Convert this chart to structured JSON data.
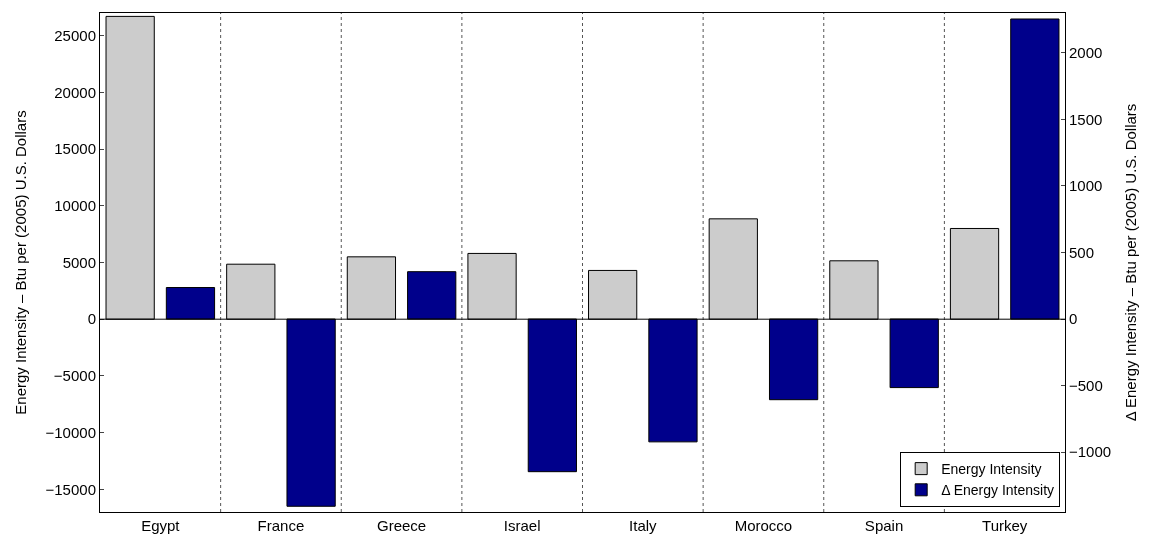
{
  "chart_data": {
    "type": "bar",
    "ylabel": "Energy Intensity – Btu per (2005) U.S. Dollars",
    "y2label": "Δ Energy Intensity – Btu per (2005) U.S. Dollars",
    "categories": [
      "Egypt",
      "France",
      "Greece",
      "Israel",
      "Italy",
      "Morocco",
      "Spain",
      "Turkey"
    ],
    "series": [
      {
        "name": "Energy Intensity",
        "color": "#cccccc",
        "values": [
          26700,
          4850,
          5500,
          5800,
          4300,
          8850,
          5150,
          8000
        ]
      },
      {
        "name": "Δ Energy Intensity",
        "color": "#00008b",
        "axis": "y2",
        "values": [
          237,
          -1407,
          356,
          -1147,
          -923,
          -606,
          -515,
          2255
        ]
      }
    ],
    "ylim": [
      -17000,
      27000
    ],
    "yticks": [
      -15000,
      -10000,
      -5000,
      0,
      5000,
      10000,
      15000,
      20000,
      25000
    ],
    "y2lim": [
      -1450,
      2300
    ],
    "y2ticks": [
      -1000,
      -500,
      0,
      500,
      1000,
      1500,
      2000
    ],
    "grid": "x",
    "legend": "bottom right"
  }
}
